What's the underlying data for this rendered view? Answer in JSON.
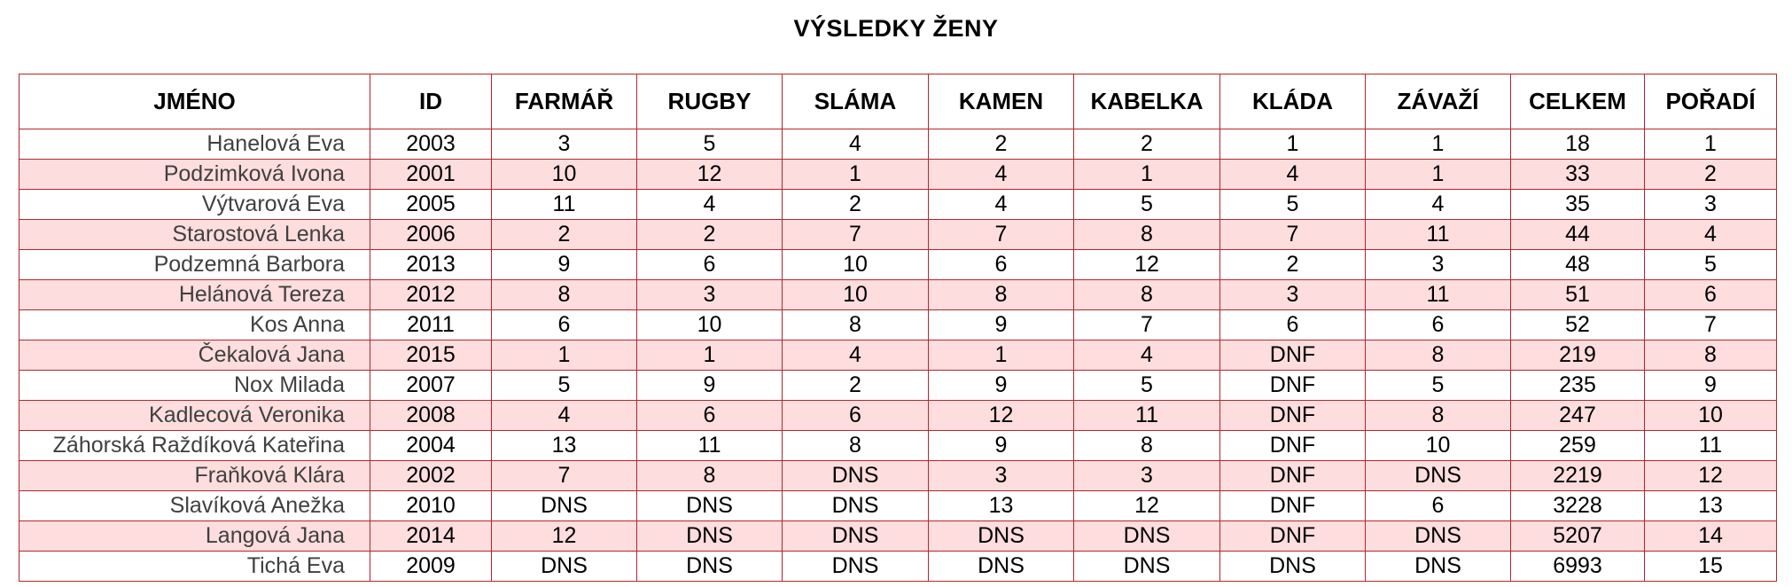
{
  "title": "VÝSLEDKY ŽENY",
  "columns": [
    "JMÉNO",
    "ID",
    "FARMÁŘ",
    "RUGBY",
    "SLÁMA",
    "KAMEN",
    "KABELKA",
    "KLÁDA",
    "ZÁVAŽÍ",
    "CELKEM",
    "POŘADÍ"
  ],
  "rows": [
    [
      "Hanelová Eva",
      "2003",
      "3",
      "5",
      "4",
      "2",
      "2",
      "1",
      "1",
      "18",
      "1"
    ],
    [
      "Podzimková Ivona",
      "2001",
      "10",
      "12",
      "1",
      "4",
      "1",
      "4",
      "1",
      "33",
      "2"
    ],
    [
      "Výtvarová Eva",
      "2005",
      "11",
      "4",
      "2",
      "4",
      "5",
      "5",
      "4",
      "35",
      "3"
    ],
    [
      "Starostová Lenka",
      "2006",
      "2",
      "2",
      "7",
      "7",
      "8",
      "7",
      "11",
      "44",
      "4"
    ],
    [
      "Podzemná Barbora",
      "2013",
      "9",
      "6",
      "10",
      "6",
      "12",
      "2",
      "3",
      "48",
      "5"
    ],
    [
      "Helánová Tereza",
      "2012",
      "8",
      "3",
      "10",
      "8",
      "8",
      "3",
      "11",
      "51",
      "6"
    ],
    [
      "Kos Anna",
      "2011",
      "6",
      "10",
      "8",
      "9",
      "7",
      "6",
      "6",
      "52",
      "7"
    ],
    [
      "Čekalová Jana",
      "2015",
      "1",
      "1",
      "4",
      "1",
      "4",
      "DNF",
      "8",
      "219",
      "8"
    ],
    [
      "Nox Milada",
      "2007",
      "5",
      "9",
      "2",
      "9",
      "5",
      "DNF",
      "5",
      "235",
      "9"
    ],
    [
      "Kadlecová Veronika",
      "2008",
      "4",
      "6",
      "6",
      "12",
      "11",
      "DNF",
      "8",
      "247",
      "10"
    ],
    [
      "Záhorská Raždíková Kateřina",
      "2004",
      "13",
      "11",
      "8",
      "9",
      "8",
      "DNF",
      "10",
      "259",
      "11"
    ],
    [
      "Fraňková Klára",
      "2002",
      "7",
      "8",
      "DNS",
      "3",
      "3",
      "DNF",
      "DNS",
      "2219",
      "12"
    ],
    [
      "Slavíková Anežka",
      "2010",
      "DNS",
      "DNS",
      "DNS",
      "13",
      "12",
      "DNF",
      "6",
      "3228",
      "13"
    ],
    [
      "Langová Jana",
      "2014",
      "12",
      "DNS",
      "DNS",
      "DNS",
      "DNS",
      "DNF",
      "DNS",
      "5207",
      "14"
    ],
    [
      "Tichá Eva",
      "2009",
      "DNS",
      "DNS",
      "DNS",
      "DNS",
      "DNS",
      "DNS",
      "DNS",
      "6993",
      "15"
    ]
  ],
  "colors": {
    "border": "#b3262c",
    "shade": "#fddddd",
    "name_text": "#404040"
  }
}
